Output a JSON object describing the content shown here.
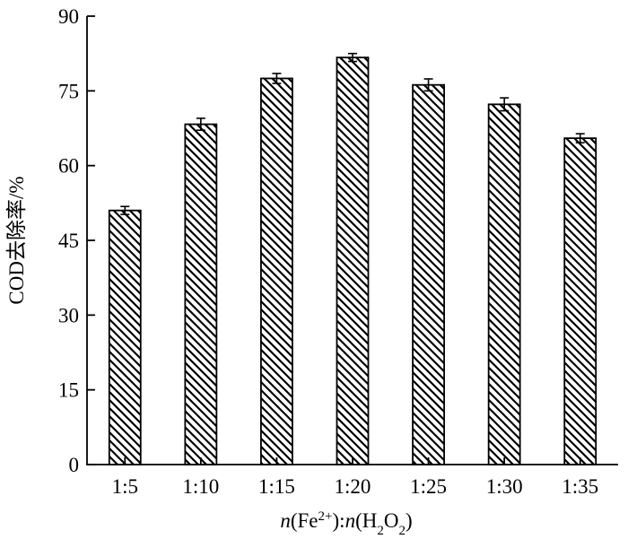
{
  "chart_data": {
    "type": "bar",
    "categories": [
      "1:5",
      "1:10",
      "1:15",
      "1:20",
      "1:25",
      "1:30",
      "1:35"
    ],
    "values": [
      51,
      68.3,
      77.5,
      81.7,
      76.2,
      72.3,
      65.5
    ],
    "errors": [
      0.8,
      1.2,
      1.0,
      0.8,
      1.2,
      1.3,
      0.9
    ],
    "title": "",
    "ylabel": "COD去除率/%",
    "xlabel": {
      "n1": "n",
      "open1": "(Fe",
      "sup": "2+",
      "close1": "):",
      "n2": "n",
      "open2": "(H",
      "sub1": "2",
      "mid": "O",
      "sub2": "2",
      "close2": ")"
    },
    "ylim": [
      0,
      90
    ],
    "yticks": [
      0,
      15,
      30,
      45,
      60,
      75,
      90
    ],
    "grid": false,
    "legend": "none",
    "bar_pattern": "diagonal-hatch",
    "colors": {
      "bar_fill": "#ffffff",
      "hatch": "#000000",
      "axis": "#000000"
    }
  }
}
